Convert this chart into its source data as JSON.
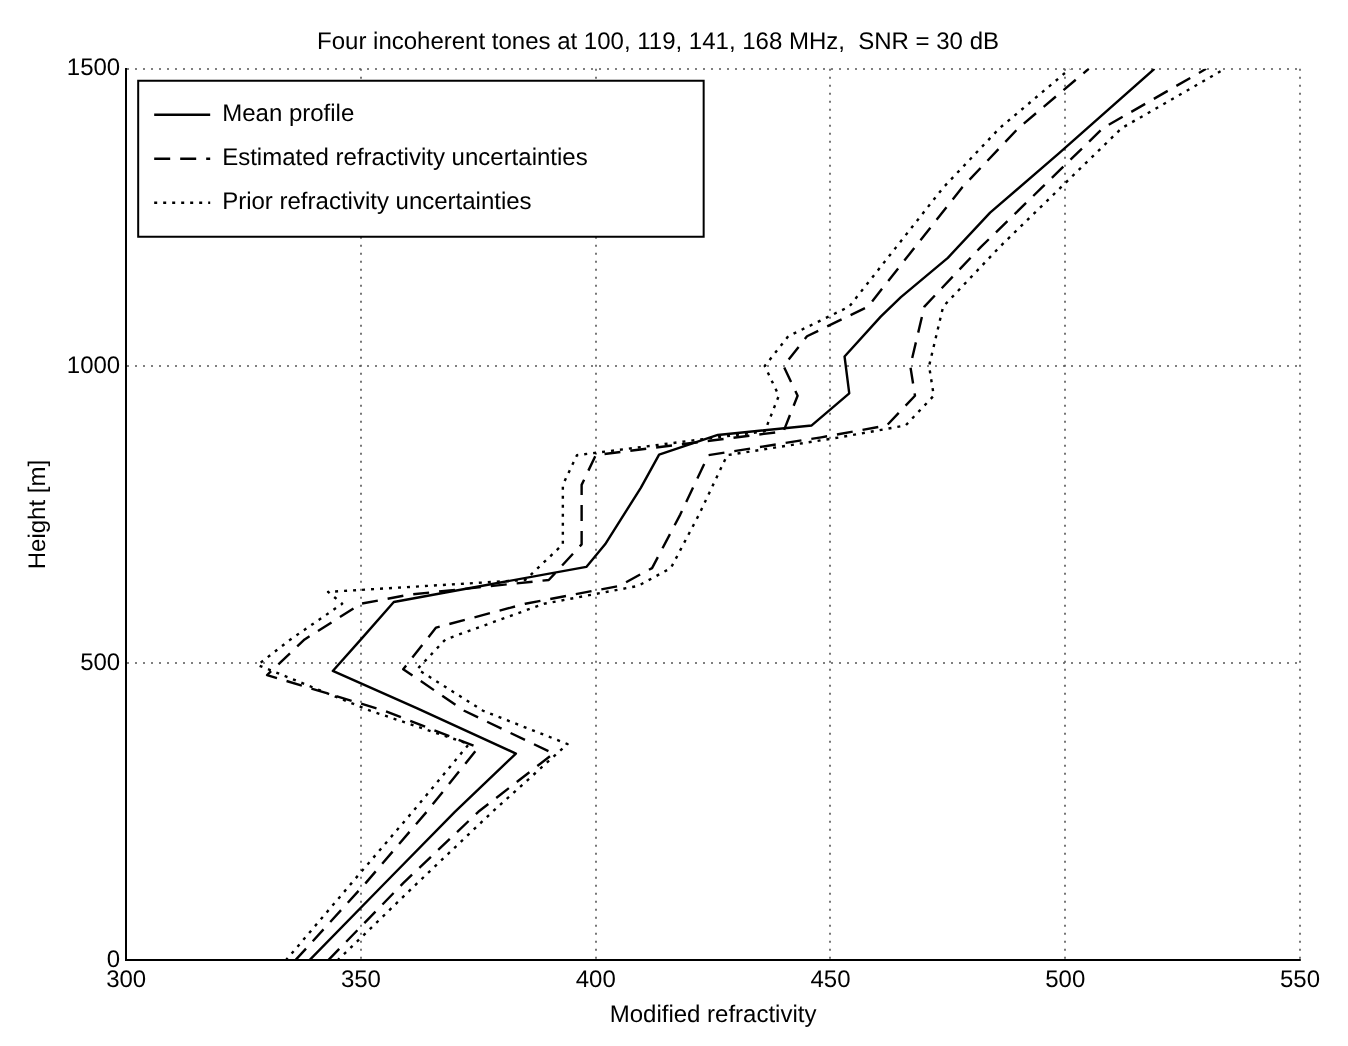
{
  "chart_data": {
    "type": "line",
    "title": "Four incoherent tones at 100, 119, 141, 168 MHz,  SNR = 30 dB",
    "xlabel": "Modified refractivity",
    "ylabel": "Height [m]",
    "xlim": [
      300,
      550
    ],
    "xticks": [
      300,
      350,
      400,
      450,
      500,
      550
    ],
    "ylim": [
      0,
      1500
    ],
    "yticks": [
      0,
      500,
      1000,
      1500
    ],
    "grid": true,
    "legend": "top left",
    "marker": "none",
    "series": [
      {
        "name": "Mean profile",
        "color": "#000000",
        "line_style": "solid",
        "x": [
          339,
          354.6,
          370,
          383,
          362,
          344,
          350,
          357,
          368,
          398,
          402,
          409.6,
          413.5,
          426,
          446,
          454,
          453,
          460.7,
          465,
          475,
          484,
          498.7,
          519
        ],
        "values": [
          0,
          126,
          250,
          348,
          424,
          487,
          540,
          603,
          619,
          662,
          700,
          795,
          851,
          884,
          900,
          954,
          1016,
          1083,
          1116,
          1182,
          1258,
          1358,
          1500
        ]
      },
      {
        "name": "Estimated refractivity uncertainties",
        "color": "#000000",
        "line_style": "dashed",
        "x": [
          336,
          351,
          364,
          375,
          355,
          330,
          338,
          350,
          360,
          390,
          397,
          397,
          400,
          420,
          440,
          443,
          440,
          445,
          458,
          468,
          478,
          490,
          505
        ],
        "values": [
          0,
          130,
          250,
          358,
          420,
          480,
          540,
          600,
          615,
          640,
          700,
          800,
          850,
          870,
          890,
          950,
          1000,
          1050,
          1100,
          1200,
          1300,
          1400,
          1500
        ]
      },
      {
        "color": "#000000",
        "line_style": "dashed",
        "x": [
          343,
          359,
          375,
          391,
          372,
          359,
          366,
          385,
          405,
          412,
          418,
          424,
          448,
          462,
          468,
          467,
          470,
          482,
          495,
          508,
          530
        ],
        "values": [
          0,
          130,
          250,
          348,
          420,
          490,
          560,
          600,
          630,
          660,
          750,
          850,
          880,
          900,
          950,
          1000,
          1100,
          1200,
          1300,
          1400,
          1500
        ]
      },
      {
        "name": "Prior refractivity uncertainties",
        "color": "#000000",
        "line_style": "dotted",
        "x": [
          334,
          348,
          361,
          373,
          352,
          328,
          335,
          346,
          343,
          385,
          393,
          393,
          396,
          416,
          436,
          439,
          436,
          441,
          454,
          464,
          474,
          486,
          501
        ],
        "values": [
          0,
          130,
          250,
          364,
          420,
          497,
          540,
          600,
          620,
          640,
          700,
          800,
          850,
          870,
          890,
          950,
          1000,
          1050,
          1100,
          1200,
          1300,
          1400,
          1500
        ]
      },
      {
        "color": "#000000",
        "line_style": "dotted",
        "x": [
          345,
          362,
          378,
          394,
          376,
          362,
          368,
          389,
          409,
          416,
          422,
          428,
          452,
          466,
          472,
          471,
          474,
          486,
          499,
          512,
          534
        ],
        "values": [
          0,
          130,
          250,
          364,
          420,
          490,
          540,
          600,
          630,
          660,
          750,
          850,
          880,
          900,
          950,
          1000,
          1100,
          1200,
          1300,
          1400,
          1500
        ]
      }
    ]
  }
}
